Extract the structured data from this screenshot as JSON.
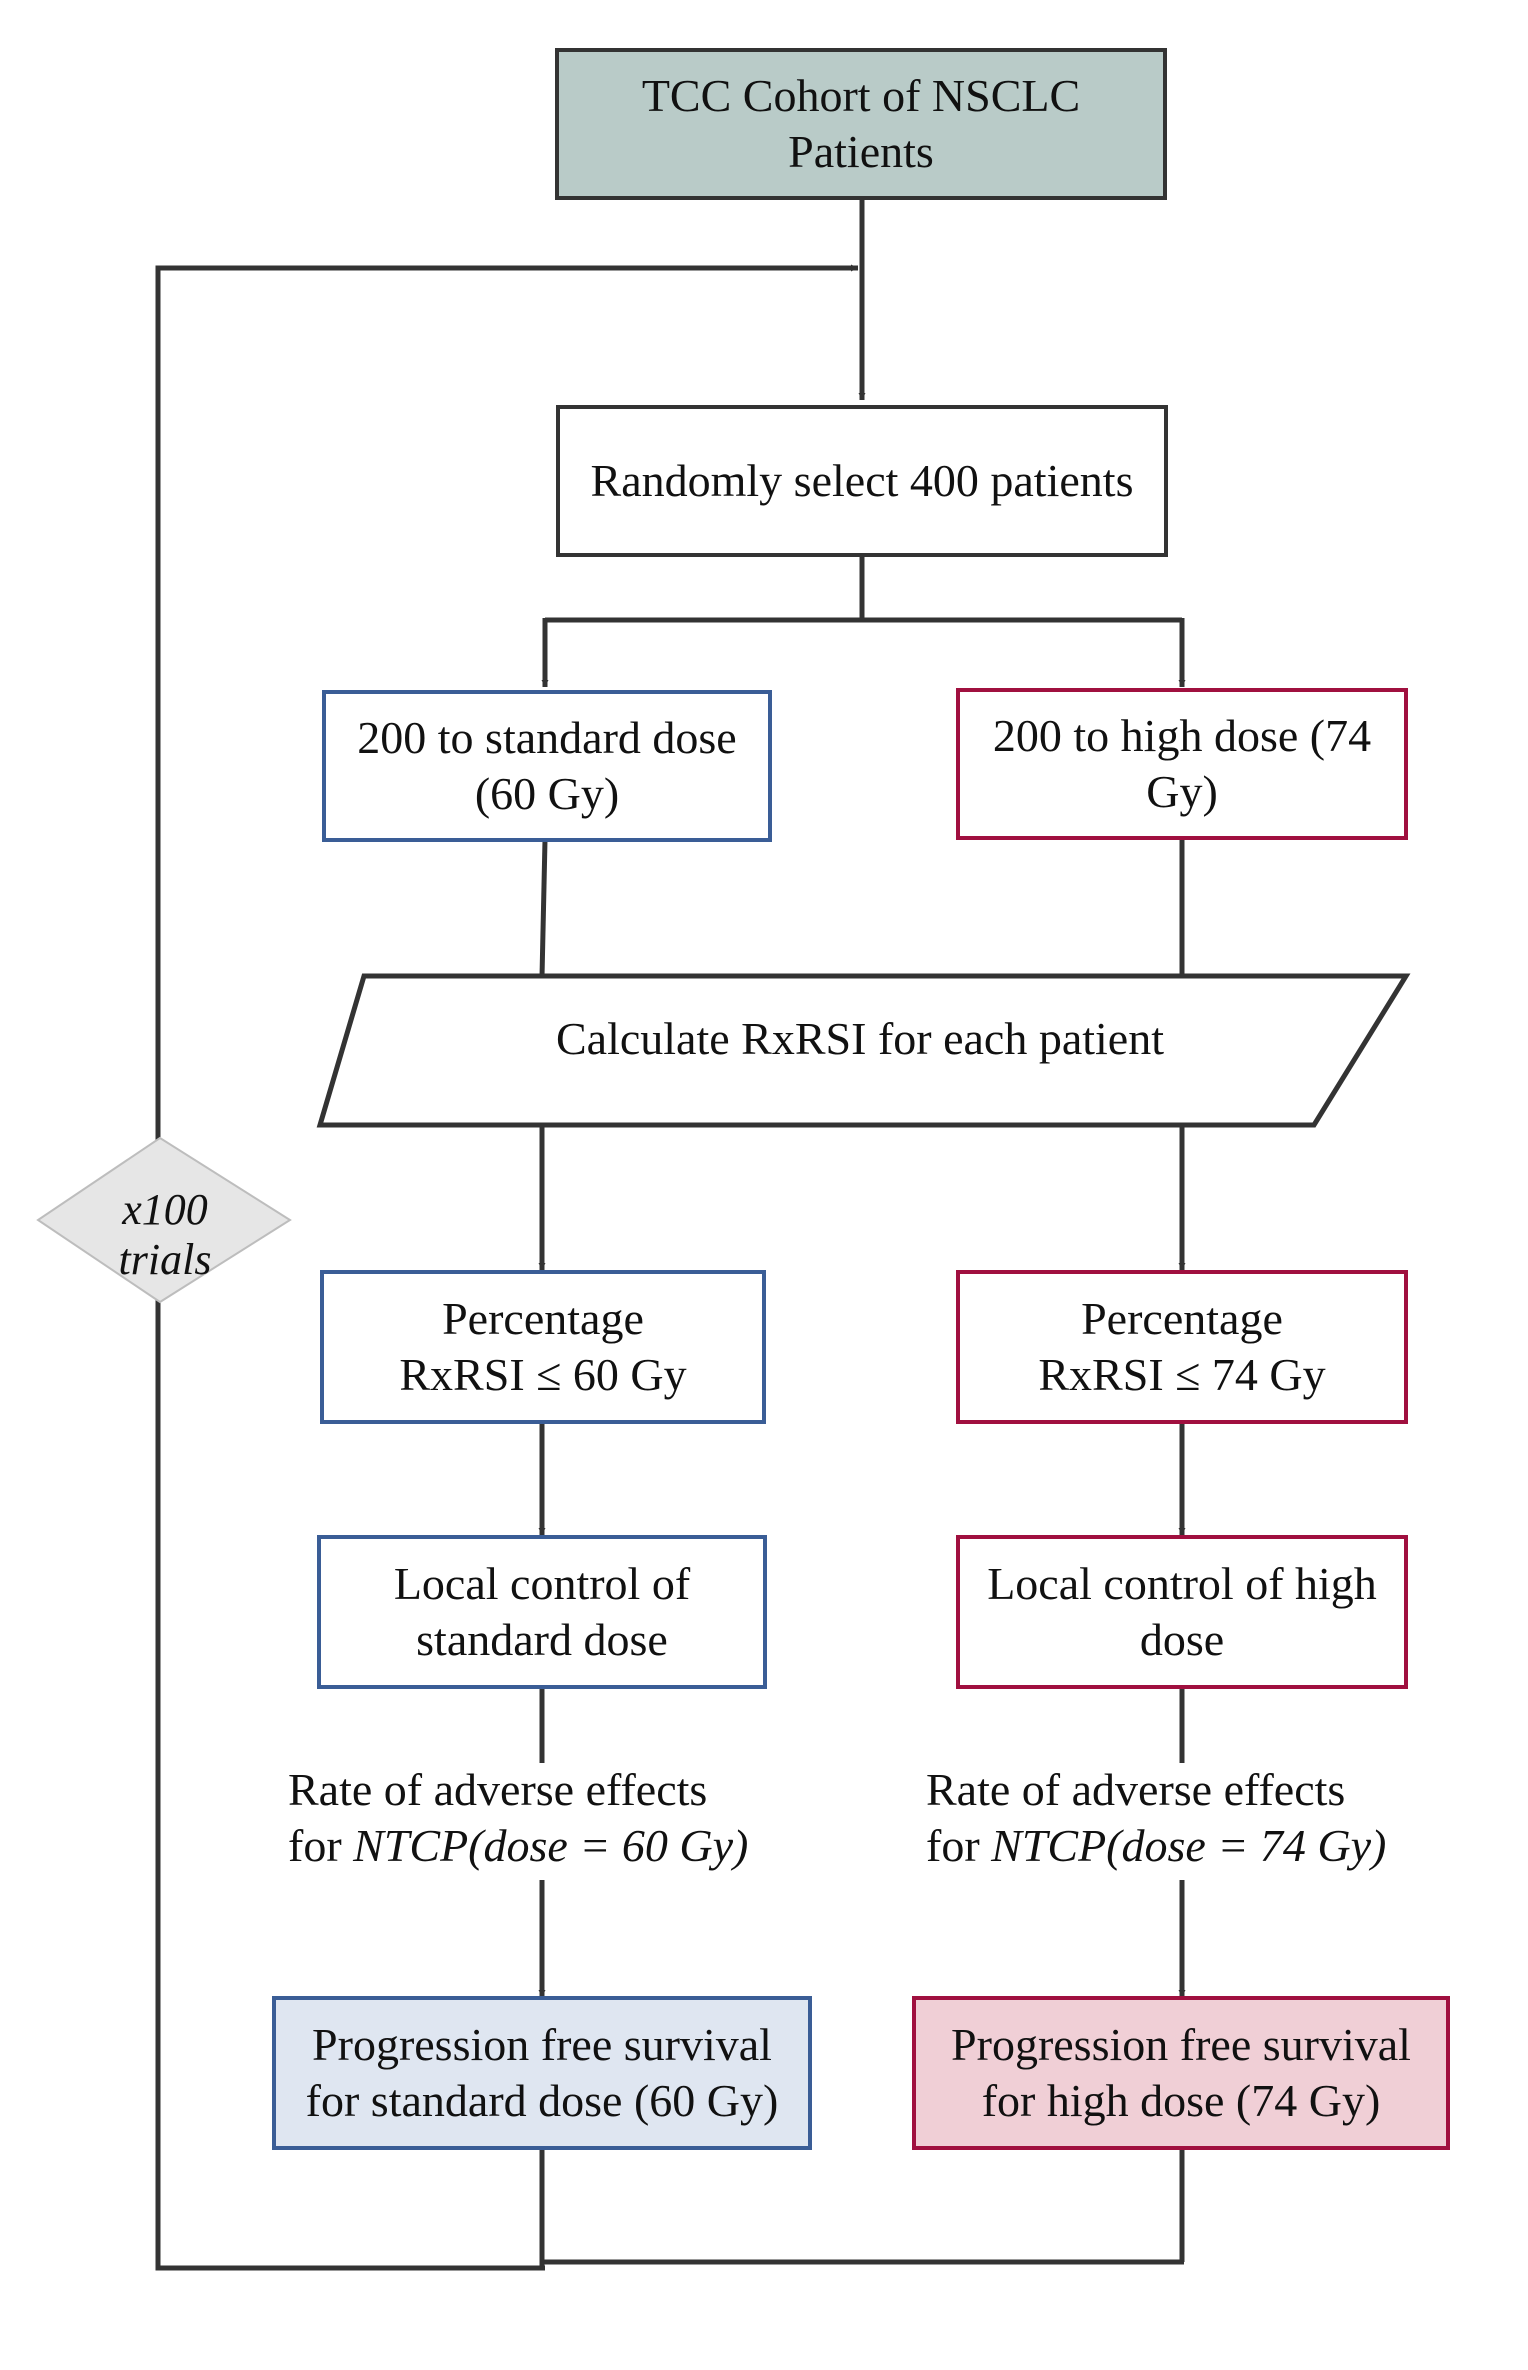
{
  "nodes": {
    "cohort": {
      "line1": "TCC Cohort of NSCLC",
      "line2": "Patients"
    },
    "select": {
      "text": "Randomly select 400 patients"
    },
    "standard_arm": {
      "line1": "200 to standard dose",
      "line2": "(60 Gy)"
    },
    "high_arm": {
      "line1": "200 to high dose (74",
      "line2": "Gy)"
    },
    "calculate": {
      "text": "Calculate RxRSI for each patient"
    },
    "pct_standard": {
      "line1": "Percentage",
      "line2": "RxRSI ≤ 60 Gy"
    },
    "pct_high": {
      "line1": "Percentage",
      "line2": "RxRSI ≤ 74 Gy"
    },
    "lc_standard": {
      "line1": "Local control of",
      "line2": "standard dose"
    },
    "lc_high": {
      "line1": "Local control of high",
      "line2": "dose"
    },
    "pfs_standard": {
      "line1": "Progression free survival",
      "line2": "for standard dose (60 Gy)"
    },
    "pfs_high": {
      "line1": "Progression free survival",
      "line2": "for high dose (74 Gy)"
    }
  },
  "edge_labels": {
    "adverse_standard": {
      "line1": "Rate of adverse effects",
      "prefix": "for ",
      "formula": "NTCP(dose = 60 Gy)"
    },
    "adverse_high": {
      "line1": "Rate of adverse effects",
      "prefix": "for ",
      "formula": "NTCP(dose = 74 Gy)"
    }
  },
  "loop": {
    "line1": "x100",
    "line2": "trials"
  },
  "colors": {
    "line": "#333333",
    "top_fill": "#b9cbc8",
    "standard_border": "#3a5d96",
    "high_border": "#a0103f",
    "standard_fill": "#dfe6f1",
    "high_fill": "#f0cfd6",
    "diamond_fill": "#e6e6e6"
  }
}
